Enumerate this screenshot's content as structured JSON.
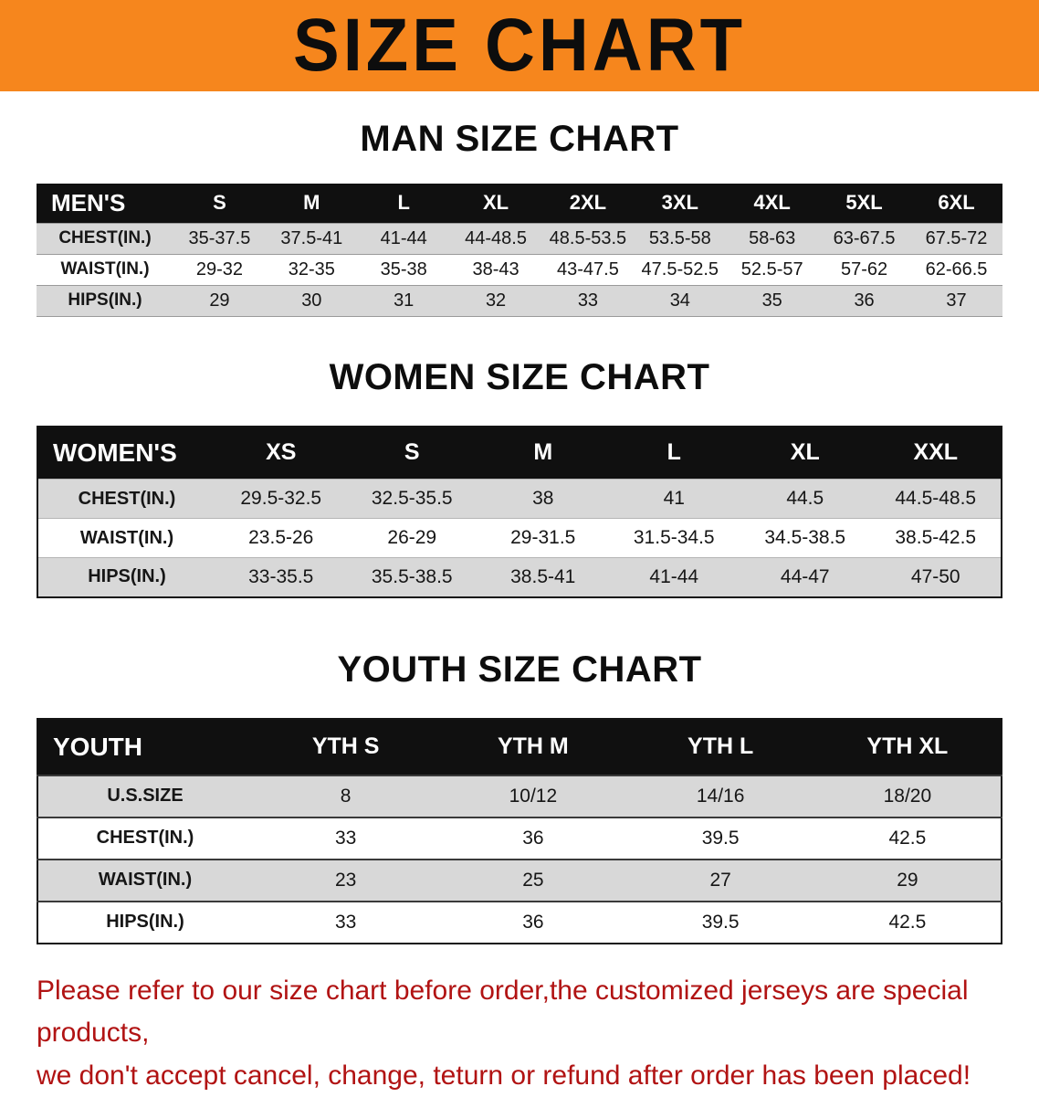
{
  "banner": {
    "title": "SIZE CHART"
  },
  "colors": {
    "banner_bg": "#f6861d",
    "header_row_bg": "#101010",
    "alt_row_bg": "#d8d8d8",
    "note_color": "#b11313"
  },
  "sections": [
    {
      "heading": "MAN SIZE CHART",
      "table": {
        "header_label": "MEN'S",
        "columns": [
          "S",
          "M",
          "L",
          "XL",
          "2XL",
          "3XL",
          "4XL",
          "5XL",
          "6XL"
        ],
        "rows": [
          {
            "label": "CHEST(IN.)",
            "values": [
              "35-37.5",
              "37.5-41",
              "41-44",
              "44-48.5",
              "48.5-53.5",
              "53.5-58",
              "58-63",
              "63-67.5",
              "67.5-72"
            ]
          },
          {
            "label": "WAIST(IN.)",
            "values": [
              "29-32",
              "32-35",
              "35-38",
              "38-43",
              "43-47.5",
              "47.5-52.5",
              "52.5-57",
              "57-62",
              "62-66.5"
            ]
          },
          {
            "label": "HIPS(IN.)",
            "values": [
              "29",
              "30",
              "31",
              "32",
              "33",
              "34",
              "35",
              "36",
              "37"
            ]
          }
        ]
      }
    },
    {
      "heading": "WOMEN SIZE CHART",
      "table": {
        "header_label": "WOMEN'S",
        "columns": [
          "XS",
          "S",
          "M",
          "L",
          "XL",
          "XXL"
        ],
        "rows": [
          {
            "label": "CHEST(IN.)",
            "values": [
              "29.5-32.5",
              "32.5-35.5",
              "38",
              "41",
              "44.5",
              "44.5-48.5"
            ]
          },
          {
            "label": "WAIST(IN.)",
            "values": [
              "23.5-26",
              "26-29",
              "29-31.5",
              "31.5-34.5",
              "34.5-38.5",
              "38.5-42.5"
            ]
          },
          {
            "label": "HIPS(IN.)",
            "values": [
              "33-35.5",
              "35.5-38.5",
              "38.5-41",
              "41-44",
              "44-47",
              "47-50"
            ]
          }
        ]
      }
    },
    {
      "heading": "YOUTH SIZE CHART",
      "table": {
        "header_label": "YOUTH",
        "columns": [
          "YTH S",
          "YTH M",
          "YTH L",
          "YTH XL"
        ],
        "rows": [
          {
            "label": "U.S.SIZE",
            "values": [
              "8",
              "10/12",
              "14/16",
              "18/20"
            ]
          },
          {
            "label": "CHEST(IN.)",
            "values": [
              "33",
              "36",
              "39.5",
              "42.5"
            ]
          },
          {
            "label": "WAIST(IN.)",
            "values": [
              "23",
              "25",
              "27",
              "29"
            ]
          },
          {
            "label": "HIPS(IN.)",
            "values": [
              "33",
              "36",
              "39.5",
              "42.5"
            ]
          }
        ]
      }
    }
  ],
  "footer": {
    "line1": "Please refer to our size chart before order,the customized jerseys are special products,",
    "line2": "we don't accept cancel, change, teturn or refund after order has been placed!"
  }
}
